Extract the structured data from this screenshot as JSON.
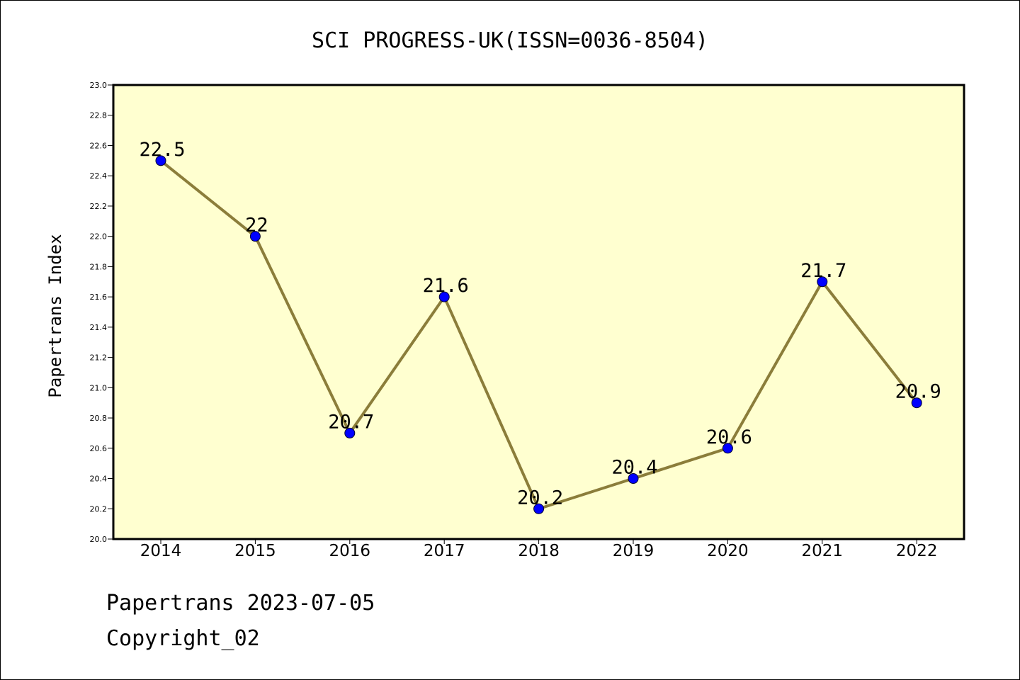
{
  "chart_data": {
    "type": "line",
    "title": "SCI PROGRESS-UK(ISSN=0036-8504)",
    "ylabel": "Papertrans Index",
    "xlabel": "",
    "categories": [
      "2014",
      "2015",
      "2016",
      "2017",
      "2018",
      "2019",
      "2020",
      "2021",
      "2022"
    ],
    "values": [
      22.5,
      22,
      20.7,
      21.6,
      20.2,
      20.4,
      20.6,
      21.7,
      20.9
    ],
    "data_labels": [
      "22.5",
      "22",
      "20.7",
      "21.6",
      "20.2",
      "20.4",
      "20.6",
      "21.7",
      "20.9"
    ],
    "ylim": [
      20.0,
      23.0
    ],
    "yticks": [
      "20.0",
      "20.2",
      "20.4",
      "20.6",
      "20.8",
      "21.0",
      "21.2",
      "21.4",
      "21.6",
      "21.8",
      "22.0",
      "22.2",
      "22.4",
      "22.6",
      "22.8",
      "23.0"
    ],
    "grid": false,
    "legend": "none",
    "colors": {
      "plot_background": "#ffffd0",
      "line": "#8b7d3a",
      "marker": "#0000ff"
    }
  },
  "footer": {
    "line1": "Papertrans 2023-07-05",
    "line2": "Copyright_02"
  }
}
